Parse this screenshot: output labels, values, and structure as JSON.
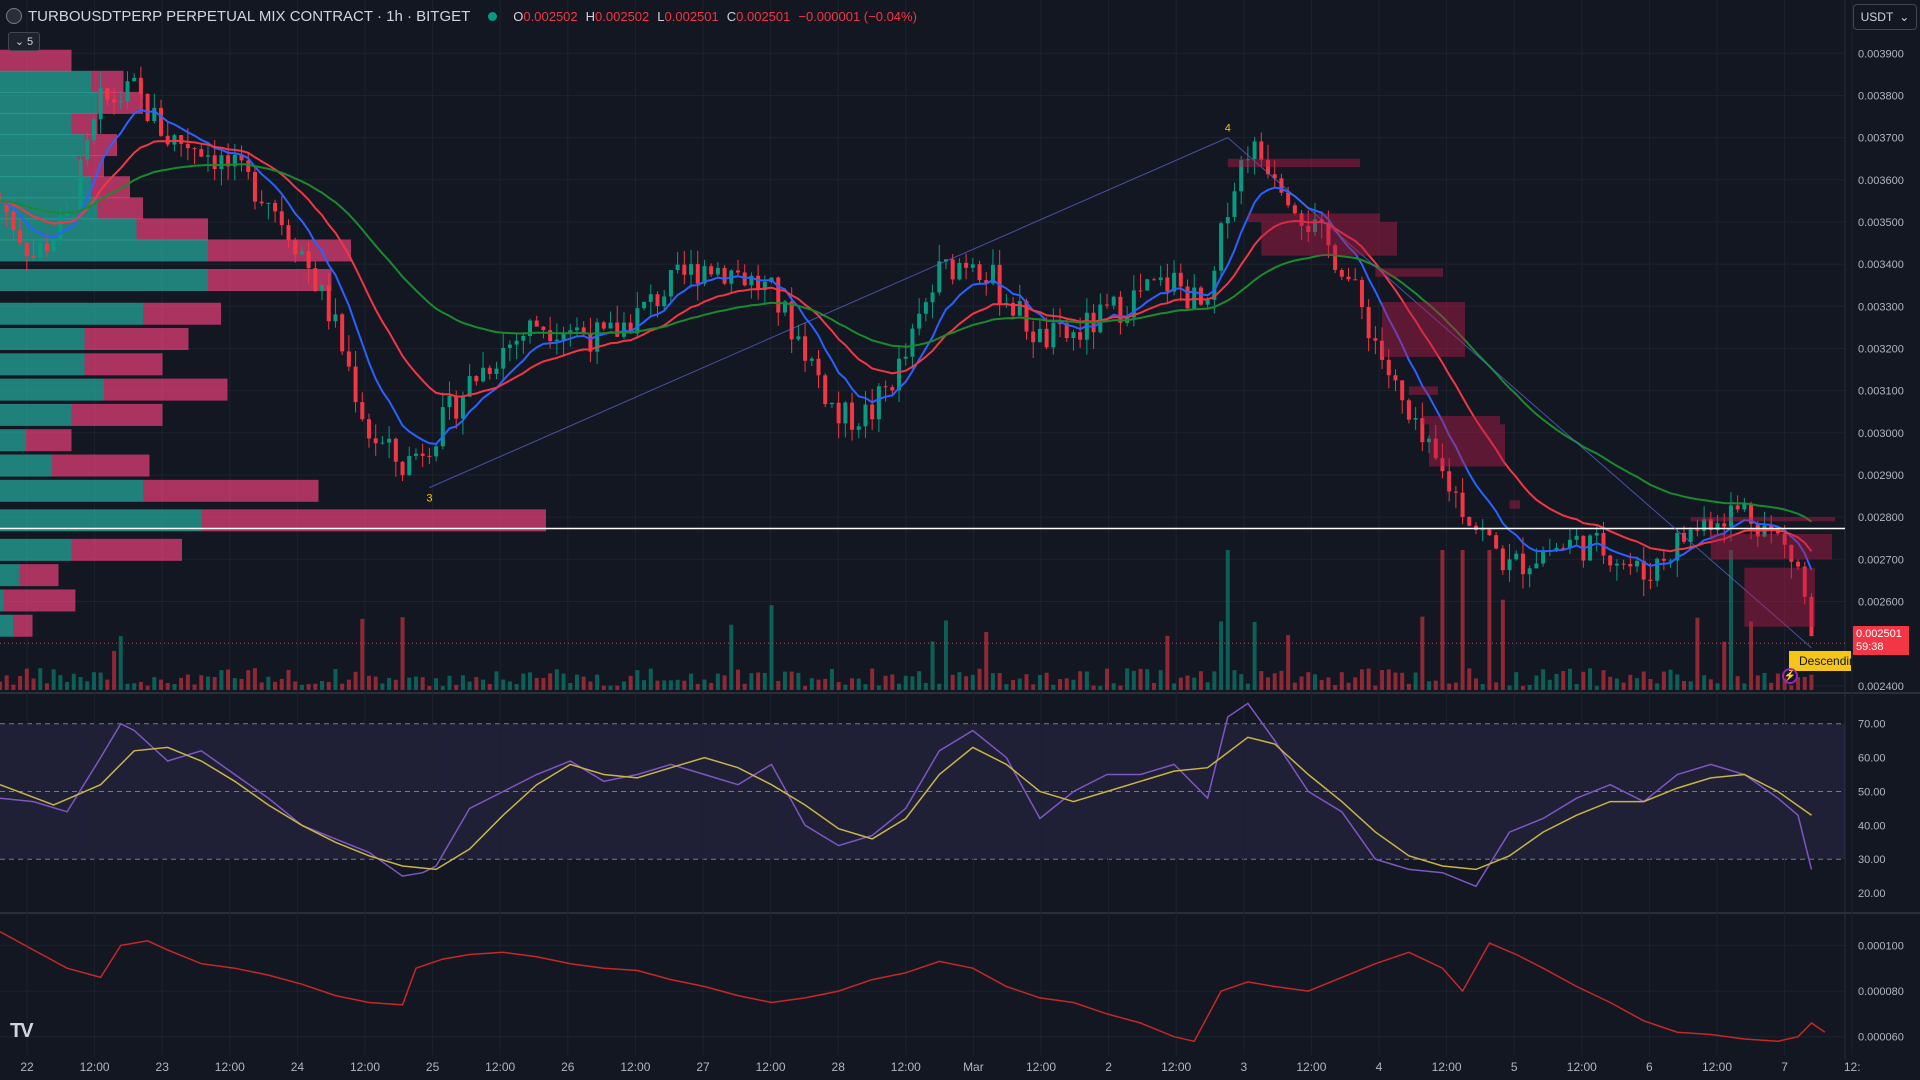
{
  "header": {
    "symbol": "TURBOUSDTPERP PERPETUAL MIX CONTRACT · 1h · BITGET",
    "ohlc": [
      {
        "k": "O",
        "v": "0.002502"
      },
      {
        "k": "H",
        "v": "0.002502"
      },
      {
        "k": "L",
        "v": "0.002501"
      },
      {
        "k": "C",
        "v": "0.002501"
      },
      {
        "k": "",
        "v": "−0.000001 (−0.04%)"
      }
    ],
    "collapse_count": "5"
  },
  "currency": "USDT",
  "price_tag": {
    "price": "0.002501",
    "countdown": "59:38"
  },
  "pattern_label": "Descending",
  "colors": {
    "bg": "#131722",
    "up": "#089981",
    "down": "#f23645",
    "ema_fast": "#2962ff",
    "ema_mid": "#f23645",
    "ema_slow": "#1b8a2e",
    "rsi": "#7e57c2",
    "rsi_ma": "#c9b44a",
    "panel3": "#c62828"
  },
  "icons": [
    "symbol-logo-icon",
    "chevron-down-icon",
    "tradingview-logo-icon",
    "alert-bolt-icon"
  ],
  "chart_data": [
    {
      "type": "candlestick",
      "title": "",
      "y_ticks": [
        "0.003900",
        "0.003800",
        "0.003700",
        "0.003600",
        "0.003500",
        "0.003400",
        "0.003300",
        "0.003200",
        "0.003100",
        "0.003000",
        "0.002900",
        "0.002800",
        "0.002700",
        "0.002600",
        "0.002400"
      ],
      "ylim": [
        0.00239,
        0.00396
      ],
      "x_ticks": [
        "22",
        "12:00",
        "23",
        "12:00",
        "24",
        "12:00",
        "25",
        "12:00",
        "26",
        "12:00",
        "27",
        "12:00",
        "28",
        "12:00",
        "Mar",
        "12:00",
        "2",
        "12:00",
        "3",
        "12:00",
        "4",
        "12:00",
        "5",
        "12:00",
        "6",
        "12:00",
        "7",
        "12:"
      ],
      "price_path": [
        [
          0,
          0.00355
        ],
        [
          5,
          0.00342
        ],
        [
          10,
          0.0035
        ],
        [
          15,
          0.00378
        ],
        [
          20,
          0.00381
        ],
        [
          25,
          0.0037
        ],
        [
          30,
          0.00368
        ],
        [
          35,
          0.00362
        ],
        [
          40,
          0.00356
        ],
        [
          45,
          0.00343
        ],
        [
          50,
          0.00325
        ],
        [
          55,
          0.003
        ],
        [
          60,
          0.00292
        ],
        [
          65,
          0.003
        ],
        [
          70,
          0.00312
        ],
        [
          75,
          0.0032
        ],
        [
          80,
          0.00326
        ],
        [
          85,
          0.00325
        ],
        [
          90,
          0.00322
        ],
        [
          95,
          0.00328
        ],
        [
          100,
          0.00335
        ],
        [
          105,
          0.0034
        ],
        [
          110,
          0.00338
        ],
        [
          115,
          0.00333
        ],
        [
          120,
          0.0032
        ],
        [
          125,
          0.00303
        ],
        [
          130,
          0.00305
        ],
        [
          135,
          0.00318
        ],
        [
          140,
          0.00338
        ],
        [
          145,
          0.00342
        ],
        [
          150,
          0.00332
        ],
        [
          155,
          0.00322
        ],
        [
          160,
          0.00323
        ],
        [
          165,
          0.00328
        ],
        [
          170,
          0.00333
        ],
        [
          175,
          0.00336
        ],
        [
          180,
          0.00328
        ],
        [
          183,
          0.00355
        ],
        [
          186,
          0.00368
        ],
        [
          190,
          0.00363
        ],
        [
          195,
          0.0035
        ],
        [
          200,
          0.0034
        ],
        [
          205,
          0.00322
        ],
        [
          210,
          0.00302
        ],
        [
          215,
          0.0029
        ],
        [
          220,
          0.00278
        ],
        [
          225,
          0.00268
        ],
        [
          230,
          0.00272
        ],
        [
          235,
          0.00274
        ],
        [
          240,
          0.00272
        ],
        [
          245,
          0.00266
        ],
        [
          250,
          0.00274
        ],
        [
          255,
          0.0028
        ],
        [
          260,
          0.00282
        ],
        [
          265,
          0.00275
        ],
        [
          268,
          0.00268
        ],
        [
          270,
          0.00252
        ]
      ],
      "volume_profile": [
        {
          "y": 0.00388,
          "up": 0.0,
          "down": 0.55
        },
        {
          "y": 0.00383,
          "up": 0.7,
          "down": 0.25
        },
        {
          "y": 0.00378,
          "up": 0.75,
          "down": 0.35
        },
        {
          "y": 0.00373,
          "up": 0.55,
          "down": 0.2
        },
        {
          "y": 0.00368,
          "up": 0.65,
          "down": 0.25
        },
        {
          "y": 0.00363,
          "up": 0.6,
          "down": 0.2
        },
        {
          "y": 0.00358,
          "up": 0.7,
          "down": 0.3
        },
        {
          "y": 0.00353,
          "up": 0.75,
          "down": 0.35
        },
        {
          "y": 0.00348,
          "up": 1.05,
          "down": 0.55
        },
        {
          "y": 0.00343,
          "up": 1.6,
          "down": 1.1
        },
        {
          "y": 0.00336,
          "up": 1.6,
          "down": 0.95
        },
        {
          "y": 0.00328,
          "up": 1.1,
          "down": 0.6
        },
        {
          "y": 0.00322,
          "up": 0.65,
          "down": 0.8
        },
        {
          "y": 0.00316,
          "up": 0.65,
          "down": 0.6
        },
        {
          "y": 0.0031,
          "up": 0.8,
          "down": 0.95
        },
        {
          "y": 0.00304,
          "up": 0.55,
          "down": 0.7
        },
        {
          "y": 0.00298,
          "up": 0.2,
          "down": 0.35
        },
        {
          "y": 0.00292,
          "up": 0.4,
          "down": 0.75
        },
        {
          "y": 0.00286,
          "up": 1.1,
          "down": 1.35
        },
        {
          "y": 0.00279,
          "up": 1.55,
          "down": 2.65
        },
        {
          "y": 0.00272,
          "up": 0.55,
          "down": 0.85
        },
        {
          "y": 0.00266,
          "up": 0.15,
          "down": 0.3
        },
        {
          "y": 0.0026,
          "up": 0.03,
          "down": 0.55
        },
        {
          "y": 0.00254,
          "up": 0.1,
          "down": 0.15
        }
      ],
      "horizontal_line": 0.002773,
      "pattern_points": [
        {
          "label": "3",
          "x": 64,
          "y": 0.00287
        },
        {
          "label": "4",
          "x": 183,
          "y": 0.0037
        },
        {
          "label": "5",
          "x": 270,
          "y": 0.00249
        }
      ]
    },
    {
      "type": "line",
      "title": "",
      "y_ticks": [
        "70.00",
        "60.00",
        "50.00",
        "40.00",
        "30.00",
        "20.00"
      ],
      "ylim": [
        15,
        77
      ],
      "rsi_path": [
        [
          0,
          48
        ],
        [
          5,
          47
        ],
        [
          10,
          44
        ],
        [
          15,
          60
        ],
        [
          18,
          70
        ],
        [
          20,
          68
        ],
        [
          25,
          59
        ],
        [
          30,
          62
        ],
        [
          35,
          55
        ],
        [
          40,
          48
        ],
        [
          45,
          40
        ],
        [
          50,
          36
        ],
        [
          55,
          32
        ],
        [
          60,
          25
        ],
        [
          63,
          26
        ],
        [
          65,
          28
        ],
        [
          70,
          45
        ],
        [
          75,
          50
        ],
        [
          80,
          55
        ],
        [
          85,
          59
        ],
        [
          90,
          53
        ],
        [
          95,
          55
        ],
        [
          100,
          58
        ],
        [
          105,
          55
        ],
        [
          110,
          52
        ],
        [
          115,
          58
        ],
        [
          120,
          40
        ],
        [
          125,
          34
        ],
        [
          130,
          37
        ],
        [
          135,
          45
        ],
        [
          140,
          62
        ],
        [
          145,
          68
        ],
        [
          150,
          60
        ],
        [
          155,
          42
        ],
        [
          160,
          50
        ],
        [
          165,
          55
        ],
        [
          170,
          55
        ],
        [
          175,
          58
        ],
        [
          180,
          48
        ],
        [
          183,
          72
        ],
        [
          186,
          76
        ],
        [
          190,
          65
        ],
        [
          195,
          50
        ],
        [
          200,
          44
        ],
        [
          205,
          30
        ],
        [
          210,
          27
        ],
        [
          215,
          26
        ],
        [
          220,
          22
        ],
        [
          225,
          38
        ],
        [
          230,
          42
        ],
        [
          235,
          48
        ],
        [
          240,
          52
        ],
        [
          245,
          47
        ],
        [
          250,
          55
        ],
        [
          255,
          58
        ],
        [
          260,
          55
        ],
        [
          265,
          48
        ],
        [
          268,
          43
        ],
        [
          270,
          27
        ]
      ],
      "rsi_ma_path": [
        [
          0,
          52
        ],
        [
          8,
          46
        ],
        [
          15,
          52
        ],
        [
          20,
          62
        ],
        [
          25,
          63
        ],
        [
          30,
          59
        ],
        [
          35,
          53
        ],
        [
          40,
          46
        ],
        [
          45,
          40
        ],
        [
          50,
          35
        ],
        [
          55,
          31
        ],
        [
          60,
          28
        ],
        [
          65,
          27
        ],
        [
          70,
          33
        ],
        [
          75,
          43
        ],
        [
          80,
          52
        ],
        [
          85,
          58
        ],
        [
          90,
          55
        ],
        [
          95,
          54
        ],
        [
          100,
          57
        ],
        [
          105,
          60
        ],
        [
          110,
          57
        ],
        [
          115,
          52
        ],
        [
          120,
          46
        ],
        [
          125,
          39
        ],
        [
          130,
          36
        ],
        [
          135,
          42
        ],
        [
          140,
          55
        ],
        [
          145,
          63
        ],
        [
          150,
          58
        ],
        [
          155,
          50
        ],
        [
          160,
          47
        ],
        [
          165,
          50
        ],
        [
          170,
          53
        ],
        [
          175,
          56
        ],
        [
          180,
          57
        ],
        [
          186,
          66
        ],
        [
          190,
          64
        ],
        [
          195,
          55
        ],
        [
          200,
          47
        ],
        [
          205,
          38
        ],
        [
          210,
          31
        ],
        [
          215,
          28
        ],
        [
          220,
          27
        ],
        [
          225,
          31
        ],
        [
          230,
          38
        ],
        [
          235,
          43
        ],
        [
          240,
          47
        ],
        [
          245,
          47
        ],
        [
          250,
          51
        ],
        [
          255,
          54
        ],
        [
          260,
          55
        ],
        [
          265,
          50
        ],
        [
          270,
          43
        ]
      ]
    },
    {
      "type": "line",
      "title": "",
      "y_ticks": [
        "0.000100",
        "0.000080",
        "0.000060"
      ],
      "ylim": [
        5.2e-05,
        0.000112
      ],
      "series_path": [
        [
          0,
          0.000106
        ],
        [
          5,
          9.8e-05
        ],
        [
          10,
          9e-05
        ],
        [
          15,
          8.6e-05
        ],
        [
          18,
          0.0001
        ],
        [
          22,
          0.000102
        ],
        [
          25,
          9.8e-05
        ],
        [
          30,
          9.2e-05
        ],
        [
          35,
          9e-05
        ],
        [
          40,
          8.7e-05
        ],
        [
          45,
          8.3e-05
        ],
        [
          50,
          7.8e-05
        ],
        [
          55,
          7.5e-05
        ],
        [
          60,
          7.4e-05
        ],
        [
          62,
          9e-05
        ],
        [
          66,
          9.4e-05
        ],
        [
          70,
          9.6e-05
        ],
        [
          75,
          9.7e-05
        ],
        [
          80,
          9.5e-05
        ],
        [
          85,
          9.2e-05
        ],
        [
          90,
          9e-05
        ],
        [
          95,
          8.9e-05
        ],
        [
          100,
          8.5e-05
        ],
        [
          105,
          8.2e-05
        ],
        [
          110,
          7.8e-05
        ],
        [
          115,
          7.5e-05
        ],
        [
          120,
          7.7e-05
        ],
        [
          125,
          8e-05
        ],
        [
          130,
          8.5e-05
        ],
        [
          135,
          8.8e-05
        ],
        [
          140,
          9.3e-05
        ],
        [
          145,
          9e-05
        ],
        [
          150,
          8.2e-05
        ],
        [
          155,
          7.7e-05
        ],
        [
          160,
          7.5e-05
        ],
        [
          165,
          7e-05
        ],
        [
          170,
          6.6e-05
        ],
        [
          175,
          6e-05
        ],
        [
          178,
          5.8e-05
        ],
        [
          182,
          8e-05
        ],
        [
          186,
          8.4e-05
        ],
        [
          190,
          8.2e-05
        ],
        [
          195,
          8e-05
        ],
        [
          200,
          8.6e-05
        ],
        [
          205,
          9.2e-05
        ],
        [
          210,
          9.7e-05
        ],
        [
          215,
          9e-05
        ],
        [
          218,
          8e-05
        ],
        [
          222,
          0.000101
        ],
        [
          226,
          9.6e-05
        ],
        [
          230,
          9e-05
        ],
        [
          235,
          8.2e-05
        ],
        [
          240,
          7.5e-05
        ],
        [
          245,
          6.7e-05
        ],
        [
          250,
          6.2e-05
        ],
        [
          255,
          6.1e-05
        ],
        [
          260,
          5.9e-05
        ],
        [
          265,
          5.8e-05
        ],
        [
          268,
          6e-05
        ],
        [
          270,
          6.6e-05
        ],
        [
          272,
          6.2e-05
        ]
      ]
    }
  ]
}
